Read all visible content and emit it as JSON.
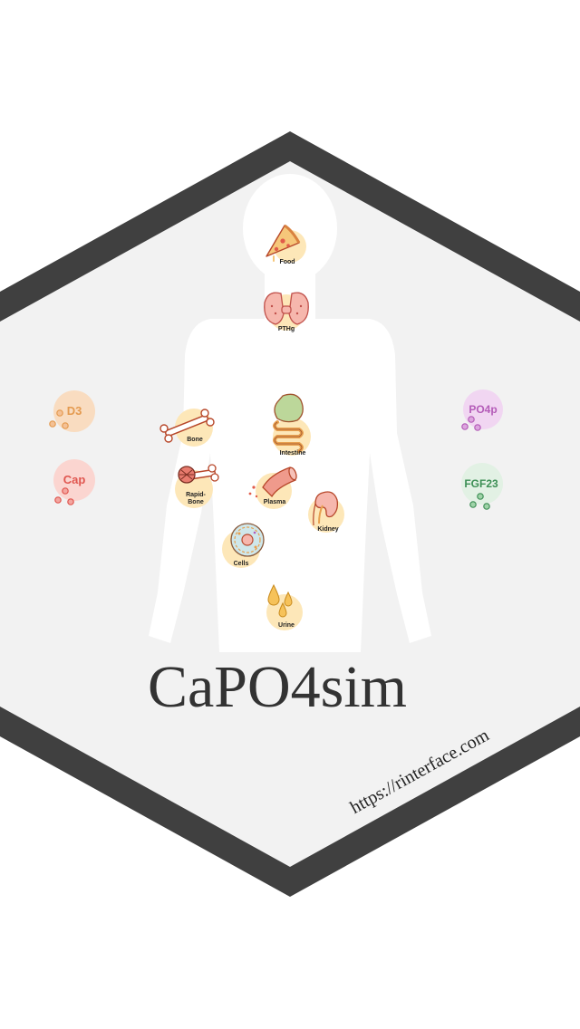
{
  "title": "CaPO4sim",
  "url": "https://rinterface.com",
  "colors": {
    "hex_border": "#404040",
    "hex_fill": "#f2f2f2",
    "silhouette": "#ffffff",
    "node_bg": "#fde7b8",
    "d3": "#e49a4f",
    "cap": "#e0564f",
    "po4p": "#b45cb8",
    "fgf23": "#3d8f55"
  },
  "nodes": {
    "food": "Food",
    "pthg": "PTHg",
    "bone": "Bone",
    "intestine": "Intestine",
    "rapid_bone_line1": "Rapid-",
    "rapid_bone_line2": "Bone",
    "plasma": "Plasma",
    "kidney": "Kidney",
    "cells": "Cells",
    "urine": "Urine"
  },
  "hormones": {
    "d3": "D3",
    "cap": "Cap",
    "po4p": "PO4p",
    "fgf23": "FGF23"
  }
}
